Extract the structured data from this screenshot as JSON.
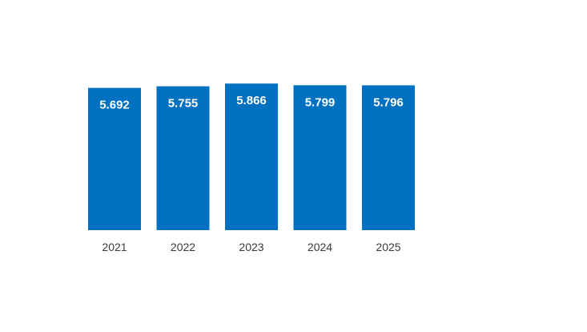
{
  "chart_data": {
    "type": "bar",
    "categories": [
      "2021",
      "2022",
      "2023",
      "2024",
      "2025"
    ],
    "values": [
      5.692,
      5.755,
      5.866,
      5.799,
      5.796
    ],
    "value_labels": [
      "5.692",
      "5.755",
      "5.866",
      "5.799",
      "5.796"
    ],
    "title": "",
    "xlabel": "",
    "ylabel": "",
    "ylim": [
      0,
      6.0
    ],
    "grid": false,
    "legend": "none",
    "bar_color": "#0070c0",
    "label_color": "#ffffff",
    "tick_color": "#3a3a3a"
  }
}
